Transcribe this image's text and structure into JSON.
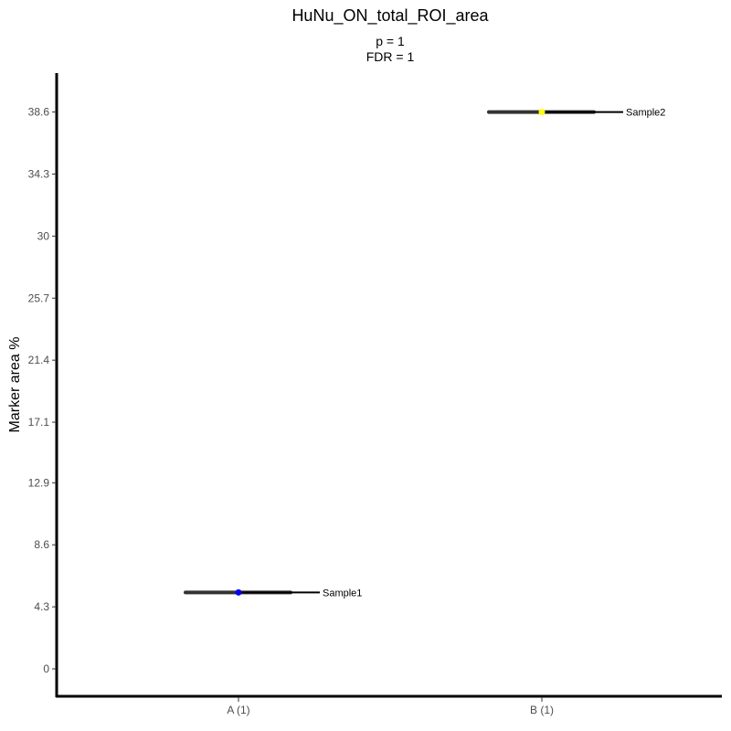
{
  "chart_data": {
    "type": "scatter",
    "title": "HuNu_ON_total_ROI_area",
    "subtitle_lines": [
      "p = 1",
      "FDR = 1"
    ],
    "xlabel": "",
    "ylabel": "Marker area %",
    "categories": [
      "A (1)",
      "B (1)"
    ],
    "y_ticks": [
      "0",
      "4.3",
      "8.6",
      "12.9",
      "17.1",
      "21.4",
      "25.7",
      "30",
      "34.3",
      "38.6"
    ],
    "ylim": [
      -1.9,
      41.3
    ],
    "grid": false,
    "points": [
      {
        "category": "A (1)",
        "value": 5.3,
        "label": "Sample1",
        "color": "#0000ff"
      },
      {
        "category": "B (1)",
        "value": 38.6,
        "label": "Sample2",
        "color": "#ffff00"
      }
    ],
    "colors": {
      "axis": "#000000",
      "tick_text": "#4d4d4d",
      "whisker": "#333333"
    }
  }
}
